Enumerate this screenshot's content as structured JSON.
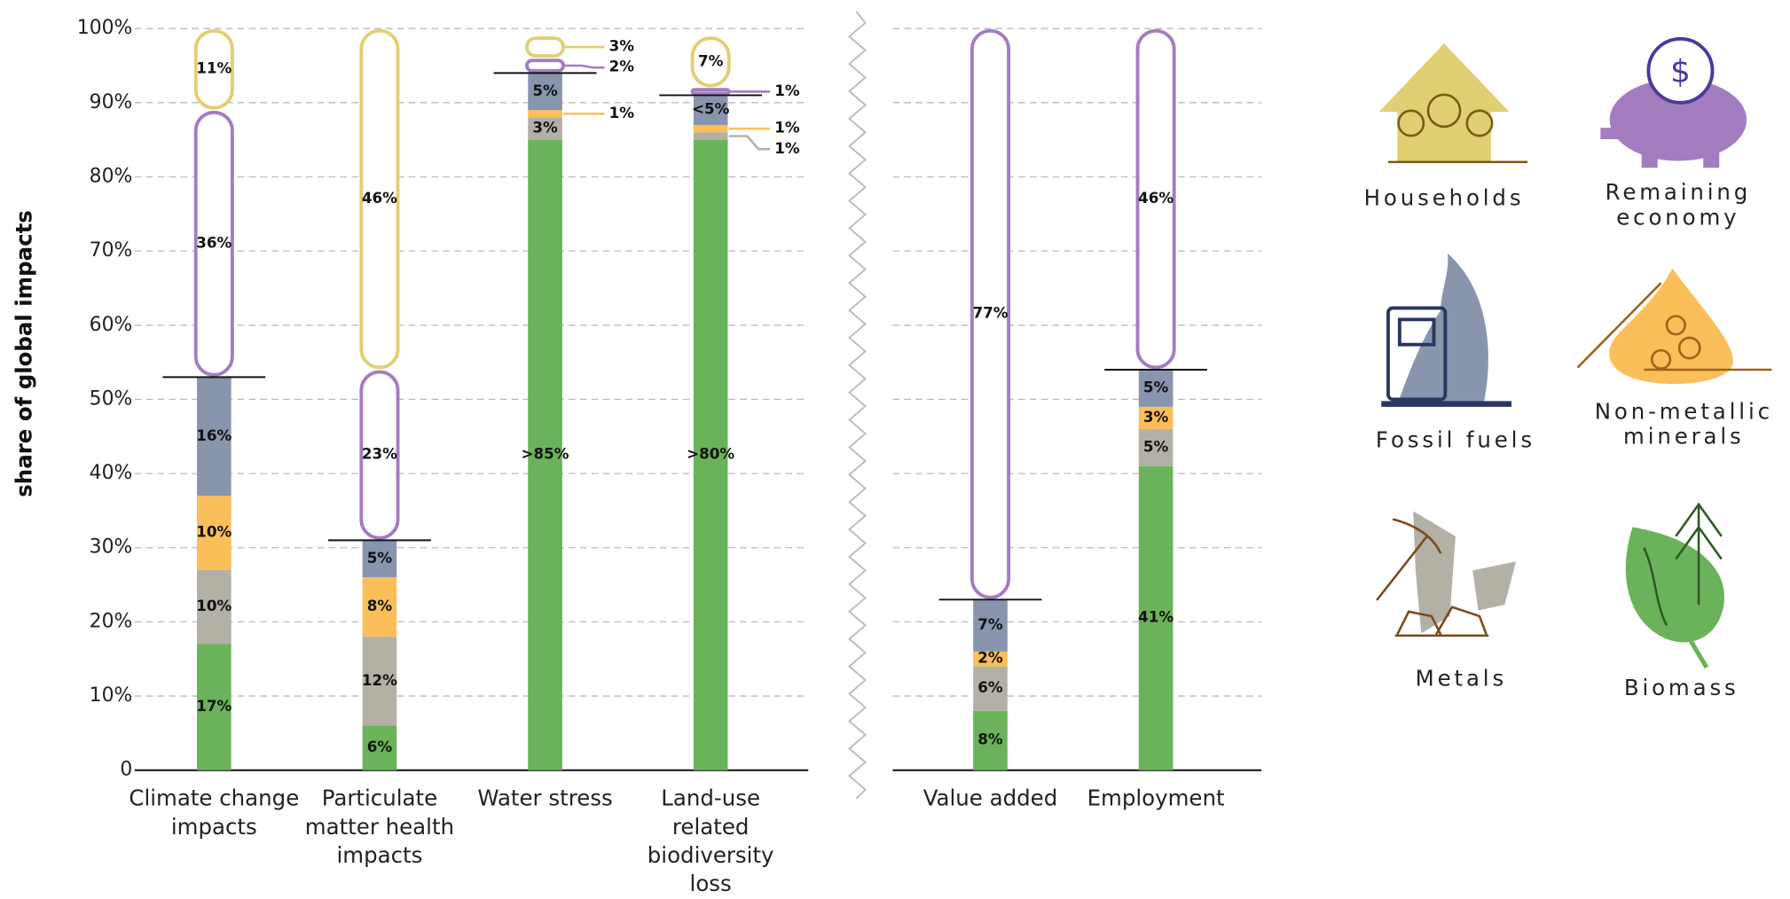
{
  "chart_data": [
    {
      "type": "bar",
      "stacked": true,
      "ylabel": "share of global impacts",
      "categories": [
        "Climate change impacts",
        "Particulate matter health impacts",
        "Water stress",
        "Land-use related biodiversity loss"
      ],
      "ylim": [
        0,
        100
      ],
      "yticks": [
        {
          "value": 0,
          "label": "0"
        },
        {
          "value": 10,
          "label": "10%"
        },
        {
          "value": 20,
          "label": "20%"
        },
        {
          "value": 30,
          "label": "30%"
        },
        {
          "value": 40,
          "label": "40%"
        },
        {
          "value": 50,
          "label": "50%"
        },
        {
          "value": 60,
          "label": "60%"
        },
        {
          "value": 70,
          "label": "70%"
        },
        {
          "value": 80,
          "label": "80%"
        },
        {
          "value": 90,
          "label": "90%"
        },
        {
          "value": 100,
          "label": "100%"
        }
      ],
      "grid": true,
      "series": [
        {
          "name": "Biomass",
          "color": "#6bb35a",
          "outline": false,
          "values": [
            17,
            6,
            85,
            85
          ],
          "value_labels": [
            "17%",
            "6%",
            ">85%",
            ">80%"
          ]
        },
        {
          "name": "Metals",
          "color": "#b3b0a6",
          "outline": false,
          "values": [
            10,
            12,
            3,
            1
          ],
          "value_labels": [
            "10%",
            "12%",
            "3%",
            "1%"
          ]
        },
        {
          "name": "Non-metallic minerals",
          "color": "#fbbf59",
          "outline": false,
          "values": [
            10,
            8,
            1,
            1
          ],
          "value_labels": [
            "10%",
            "8%",
            "1%",
            "1%"
          ]
        },
        {
          "name": "Fossil fuels",
          "color": "#8895ad",
          "outline": false,
          "values": [
            16,
            5,
            5,
            4
          ],
          "value_labels": [
            "16%",
            "5%",
            "5%",
            "<5%"
          ]
        },
        {
          "name": "Remaining economy",
          "color": "#a47cc0",
          "outline": true,
          "values": [
            36,
            23,
            2,
            1
          ],
          "value_labels": [
            "36%",
            "23%",
            "2%",
            "1%"
          ]
        },
        {
          "name": "Households",
          "color": "#e1cf73",
          "outline": true,
          "values": [
            11,
            46,
            3,
            7
          ],
          "value_labels": [
            "11%",
            "46%",
            "3%",
            "7%"
          ]
        }
      ]
    },
    {
      "type": "bar",
      "stacked": true,
      "categories": [
        "Value added",
        "Employment"
      ],
      "ylim": [
        0,
        100
      ],
      "yticks": [
        0,
        10,
        20,
        30,
        40,
        50,
        60,
        70,
        80,
        90,
        100
      ],
      "grid": true,
      "series": [
        {
          "color": "#6bb35a",
          "outline": false,
          "values": [
            8,
            41
          ],
          "value_labels": [
            "8%",
            "41%"
          ]
        },
        {
          "color": "#b3b0a6",
          "outline": false,
          "values": [
            6,
            5
          ],
          "value_labels": [
            "6%",
            "5%"
          ]
        },
        {
          "color": "#fbbf59",
          "outline": false,
          "values": [
            2,
            3
          ],
          "value_labels": [
            "2%",
            "3%"
          ]
        },
        {
          "color": "#8895ad",
          "outline": false,
          "values": [
            7,
            5
          ],
          "value_labels": [
            "7%",
            "5%"
          ]
        },
        {
          "color": "#a47cc0",
          "outline": true,
          "values": [
            77,
            46
          ],
          "value_labels": [
            "77%",
            "46%"
          ]
        }
      ]
    }
  ]
}
